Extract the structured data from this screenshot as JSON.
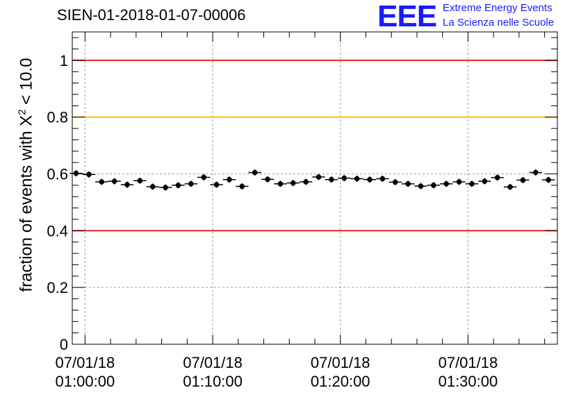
{
  "chart_data": {
    "type": "scatter",
    "title": "SIEN-01-2018-01-07-00006",
    "ylabel_prefix": "fraction of events with ",
    "ylabel_symbol": "X",
    "ylabel_exponent": "2",
    "ylabel_suffix": " < 10.0",
    "xlabel": "",
    "ylim": [
      0,
      1.1
    ],
    "xlim_minutes": [
      -1.0,
      37.0
    ],
    "yticks": [
      0,
      0.2,
      0.4,
      0.6,
      0.8,
      1
    ],
    "ytick_labels": [
      "0",
      "0.2",
      "0.4",
      "0.6",
      "0.8",
      "1"
    ],
    "xticks_minutes": [
      0,
      10,
      20,
      30
    ],
    "xtick_labels": [
      {
        "date": "07/01/18",
        "time": "01:00:00"
      },
      {
        "date": "07/01/18",
        "time": "01:10:00"
      },
      {
        "date": "07/01/18",
        "time": "01:20:00"
      },
      {
        "date": "07/01/18",
        "time": "01:30:00"
      }
    ],
    "grid": true,
    "reference_lines": [
      {
        "y": 1.0,
        "color": "#e8201a"
      },
      {
        "y": 0.8,
        "color": "#ffc000"
      },
      {
        "y": 0.4,
        "color": "#e8201a"
      }
    ],
    "bin_width_minutes": 1,
    "series": [
      {
        "name": "fraction",
        "x_minutes": [
          -0.7,
          0.3,
          1.3,
          2.3,
          3.3,
          4.3,
          5.3,
          6.3,
          7.3,
          8.3,
          9.3,
          10.3,
          11.3,
          12.3,
          13.3,
          14.3,
          15.3,
          16.3,
          17.3,
          18.3,
          19.3,
          20.3,
          21.3,
          22.3,
          23.3,
          24.3,
          25.3,
          26.3,
          27.3,
          28.3,
          29.3,
          30.3,
          31.3,
          32.3,
          33.3,
          34.3,
          35.3,
          36.3
        ],
        "values": [
          0.602,
          0.598,
          0.572,
          0.574,
          0.562,
          0.576,
          0.555,
          0.552,
          0.56,
          0.565,
          0.588,
          0.562,
          0.58,
          0.556,
          0.605,
          0.581,
          0.565,
          0.568,
          0.572,
          0.589,
          0.58,
          0.585,
          0.583,
          0.58,
          0.583,
          0.571,
          0.565,
          0.557,
          0.56,
          0.565,
          0.572,
          0.565,
          0.574,
          0.587,
          0.554,
          0.578,
          0.605,
          0.579
        ]
      }
    ]
  },
  "logo": {
    "mark": "EEE",
    "line1": "Extreme Energy Events",
    "line2": "La Scienza nelle Scuole"
  }
}
